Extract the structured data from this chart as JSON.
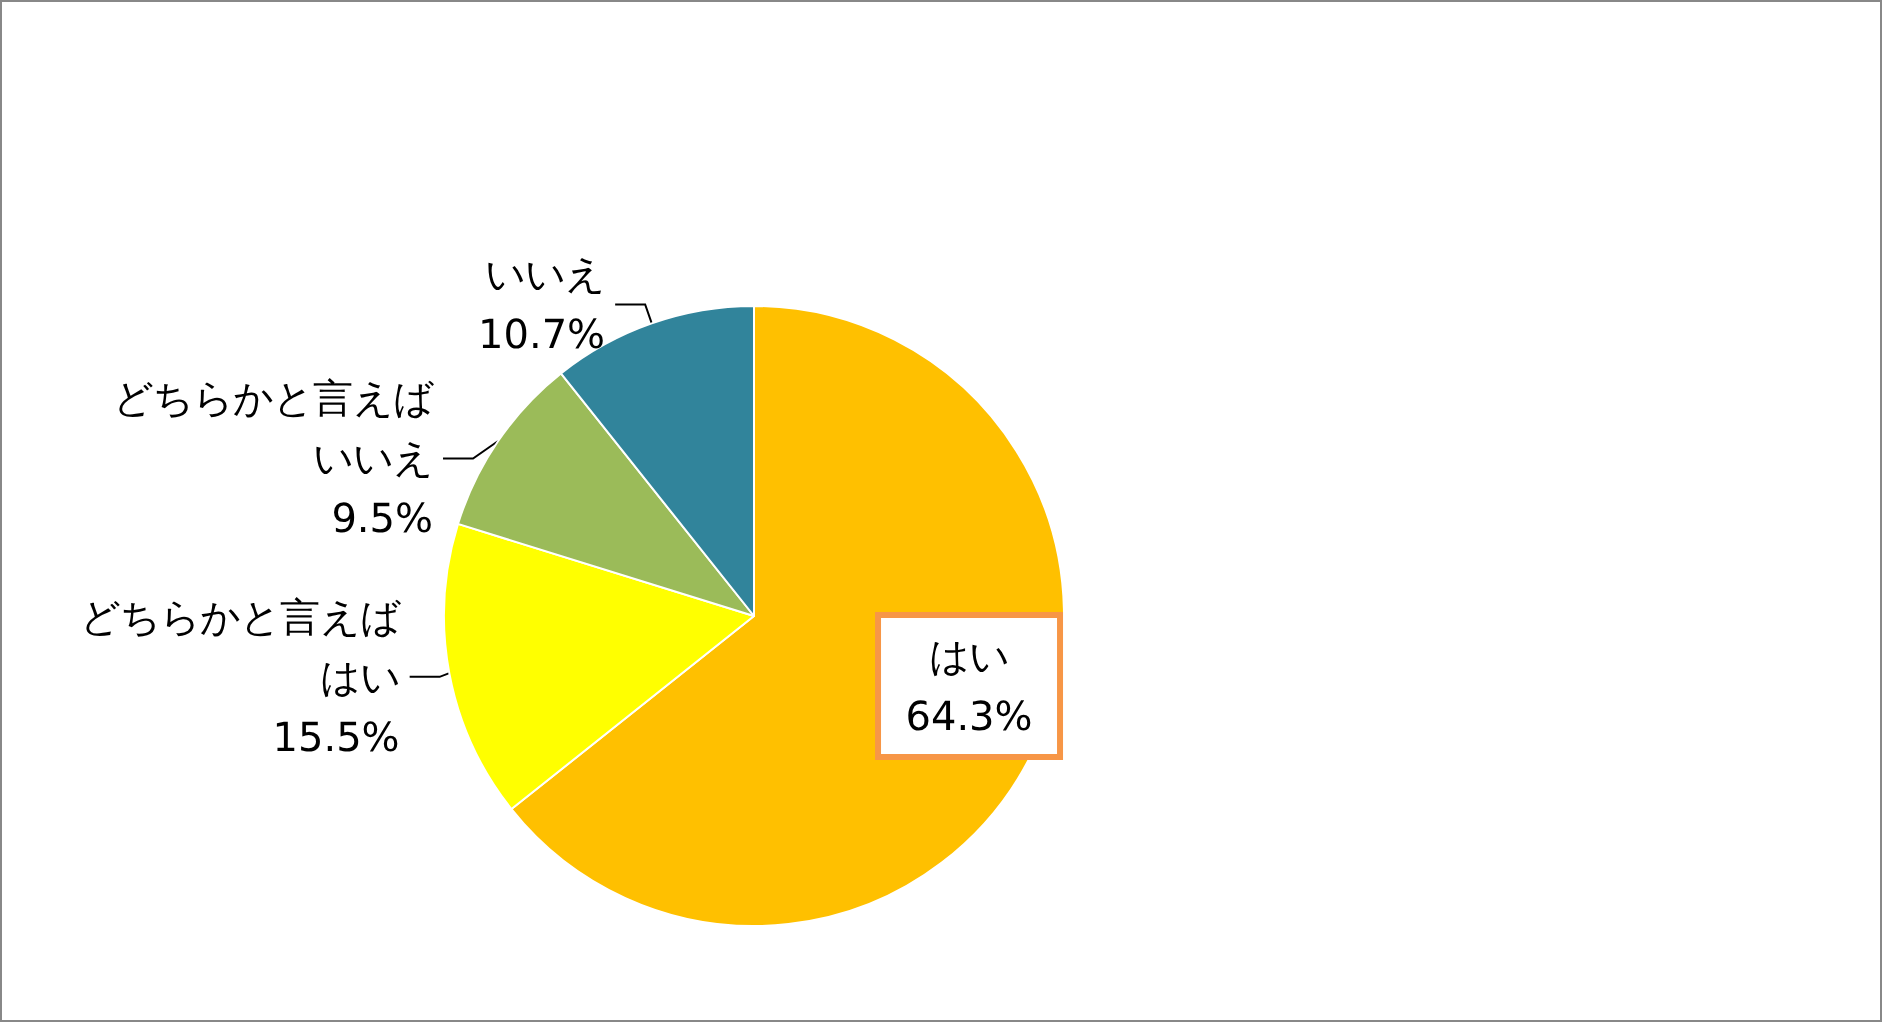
{
  "chart_data": {
    "type": "pie",
    "categories": [
      "はい",
      "どちらかと言えばはい",
      "どちらかと言えばいいえ",
      "いいえ"
    ],
    "values": [
      64.3,
      15.5,
      9.5,
      10.7
    ],
    "colors": [
      "#ffc000",
      "#ffff00",
      "#9bbb59",
      "#31849b"
    ],
    "value_labels": [
      "64.3%",
      "15.5%",
      "9.5%",
      "10.7%"
    ],
    "legend": false
  }
}
